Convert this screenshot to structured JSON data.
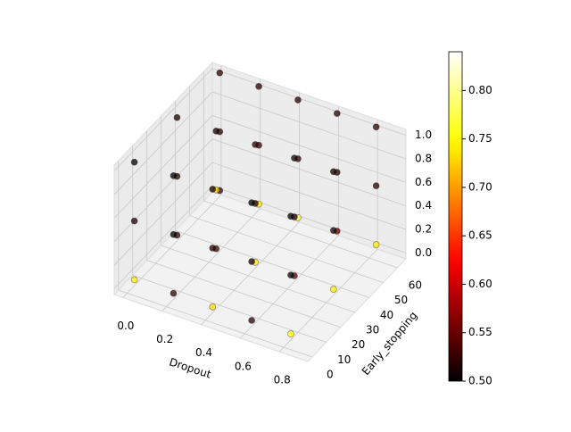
{
  "chart_data": {
    "type": "scatter3d",
    "xlabel": "Dropout",
    "ylabel": "Early_stopping",
    "xlim": [
      -0.045,
      0.945
    ],
    "ylim": [
      -3,
      66
    ],
    "zlim": [
      -0.05,
      1.05
    ],
    "xticks": [
      {
        "value": 0,
        "label": "0.0"
      },
      0.2,
      0.4,
      0.6,
      0.8
    ],
    "yticks": [
      0,
      10,
      20,
      30,
      40,
      50,
      60
    ],
    "zticks": [
      {
        "value": 0,
        "label": "0.0"
      },
      0.2,
      0.4,
      0.6,
      0.8,
      {
        "value": 1,
        "label": "1.0"
      }
    ],
    "colormap": "hot",
    "clim": [
      0.5,
      0.84
    ],
    "cticks": [
      {
        "value": 0.5,
        "label": "0.50"
      },
      0.55,
      {
        "value": 0.6,
        "label": "0.60"
      },
      0.65,
      {
        "value": 0.7,
        "label": "0.70"
      },
      0.75,
      {
        "value": 0.8,
        "label": "0.80"
      }
    ],
    "grid": true,
    "x": [
      0,
      0.2,
      0.4,
      0.6,
      0.8,
      0,
      0.2,
      0.4,
      0.6,
      0.8,
      0,
      0.2,
      0.4,
      0.6,
      0.8,
      0,
      0.2,
      0.4,
      0.6,
      0.8,
      0,
      0.2,
      0.4,
      0.6,
      0.8,
      0,
      0.2,
      0.4,
      0.6,
      0.8,
      0,
      0.2,
      0.4,
      0.6,
      0.8,
      0,
      0.2,
      0.4,
      0.6,
      0.8,
      0,
      0.2,
      0.4,
      0.6,
      0.8
    ],
    "y": [
      65,
      65,
      65,
      65,
      65,
      65,
      65,
      65,
      65,
      65,
      65,
      65,
      65,
      65,
      65,
      35,
      35,
      35,
      35,
      35,
      35,
      35,
      35,
      35,
      35,
      35,
      35,
      35,
      35,
      35,
      5,
      5,
      5,
      5,
      5,
      5,
      5,
      5,
      5,
      5,
      5,
      5,
      5,
      5,
      5
    ],
    "z": [
      1,
      1,
      1,
      1,
      1,
      0.5,
      0.5,
      0.5,
      0.5,
      0.5,
      0,
      0,
      0,
      0,
      0,
      1,
      1,
      1,
      1,
      1,
      0.5,
      0.5,
      0.5,
      0.5,
      0.5,
      0,
      0,
      0,
      0,
      0,
      1,
      1,
      1,
      1,
      1,
      0.5,
      0.5,
      0.5,
      0.5,
      0.5,
      0,
      0,
      0,
      0,
      0
    ],
    "values": [
      0.52,
      0.52,
      0.52,
      0.52,
      0.52,
      0.52,
      0.53,
      0.52,
      0.52,
      0.52,
      0.53,
      0.74,
      0.78,
      0.55,
      0.74,
      0.51,
      0.51,
      0.52,
      0.51,
      0.51,
      0.52,
      0.73,
      0.52,
      0.52,
      0.51,
      0.52,
      0.53,
      0.74,
      0.54,
      0.74,
      0.5,
      0.5,
      0.51,
      0.5,
      0.5,
      0.51,
      0.5,
      0.52,
      0.51,
      0.5,
      0.74,
      0.52,
      0.73,
      0.52,
      0.75
    ]
  }
}
